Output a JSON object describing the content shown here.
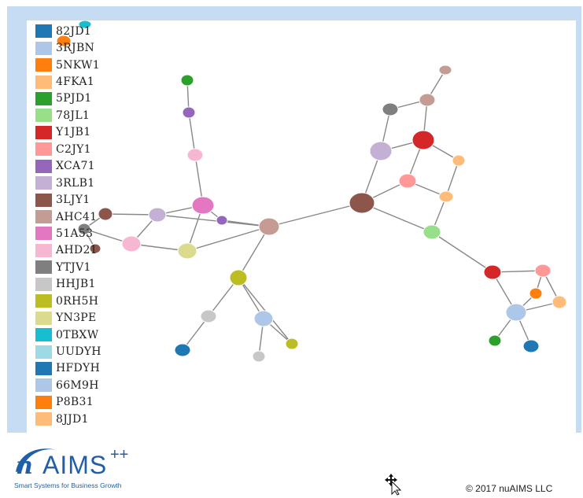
{
  "legend": [
    {
      "label": "82JD1",
      "color": "#1f77b4"
    },
    {
      "label": "3RJBN",
      "color": "#aec7e8"
    },
    {
      "label": "5NKW1",
      "color": "#ff7f0e"
    },
    {
      "label": "4FKA1",
      "color": "#ffbb78"
    },
    {
      "label": "5PJD1",
      "color": "#2ca02c"
    },
    {
      "label": "78JL1",
      "color": "#98df8a"
    },
    {
      "label": "Y1JB1",
      "color": "#d62728"
    },
    {
      "label": "C2JY1",
      "color": "#ff9896"
    },
    {
      "label": "XCA71",
      "color": "#9467bd"
    },
    {
      "label": "3RLB1",
      "color": "#c5b0d5"
    },
    {
      "label": "3LJY1",
      "color": "#8c564b"
    },
    {
      "label": "AHC41",
      "color": "#c49c94"
    },
    {
      "label": "51A53",
      "color": "#e377c2"
    },
    {
      "label": "AHD21",
      "color": "#f7b6d2"
    },
    {
      "label": "YTJV1",
      "color": "#7f7f7f"
    },
    {
      "label": "HHJB1",
      "color": "#c7c7c7"
    },
    {
      "label": "0RH5H",
      "color": "#bcbd22"
    },
    {
      "label": "YN3PE",
      "color": "#dbdb8d"
    },
    {
      "label": "0TBXW",
      "color": "#17becf"
    },
    {
      "label": "UUDYH",
      "color": "#9edae5"
    },
    {
      "label": "HFDYH",
      "color": "#1f77b4"
    },
    {
      "label": "66M9H",
      "color": "#aec7e8"
    },
    {
      "label": "P8B31",
      "color": "#ff7f0e"
    },
    {
      "label": "8JJD1",
      "color": "#ffbb78"
    }
  ],
  "network": {
    "nodes": [
      {
        "id": "n1",
        "color": "#2ca02c"
      },
      {
        "id": "n2",
        "color": "#9467bd"
      },
      {
        "id": "n3",
        "color": "#f7b6d2"
      },
      {
        "id": "n4",
        "color": "#e377c2"
      },
      {
        "id": "n5",
        "color": "#9467bd"
      },
      {
        "id": "n6",
        "color": "#c5b0d5"
      },
      {
        "id": "n7",
        "color": "#8c564b"
      },
      {
        "id": "n8",
        "color": "#7f7f7f"
      },
      {
        "id": "n9",
        "color": "#8c564b"
      },
      {
        "id": "n10",
        "color": "#f7b6d2"
      },
      {
        "id": "n11",
        "color": "#dbdb8d"
      },
      {
        "id": "n12",
        "color": "#c49c94"
      },
      {
        "id": "n13",
        "color": "#bcbd22"
      },
      {
        "id": "n14",
        "color": "#c7c7c7"
      },
      {
        "id": "n15",
        "color": "#1f77b4"
      },
      {
        "id": "n16",
        "color": "#aec7e8"
      },
      {
        "id": "n17",
        "color": "#c7c7c7"
      },
      {
        "id": "n18",
        "color": "#bcbd22"
      },
      {
        "id": "n19",
        "color": "#8c564b"
      },
      {
        "id": "n20",
        "color": "#c49c94"
      },
      {
        "id": "n21",
        "color": "#c49c94"
      },
      {
        "id": "n22",
        "color": "#7f7f7f"
      },
      {
        "id": "n23",
        "color": "#c5b0d5"
      },
      {
        "id": "n24",
        "color": "#d62728"
      },
      {
        "id": "n25",
        "color": "#ffbb78"
      },
      {
        "id": "n26",
        "color": "#ff9896"
      },
      {
        "id": "n27",
        "color": "#ffbb78"
      },
      {
        "id": "n28",
        "color": "#98df8a"
      },
      {
        "id": "n29",
        "color": "#d62728"
      },
      {
        "id": "n30",
        "color": "#ff9896"
      },
      {
        "id": "n31",
        "color": "#ff7f0e"
      },
      {
        "id": "n32",
        "color": "#ffbb78"
      },
      {
        "id": "n33",
        "color": "#aec7e8"
      },
      {
        "id": "n34",
        "color": "#2ca02c"
      },
      {
        "id": "n35",
        "color": "#1f77b4"
      },
      {
        "id": "n36",
        "color": "#17becf"
      },
      {
        "id": "n37",
        "color": "#ff7f0e"
      }
    ],
    "edges": [
      [
        "n1",
        "n2"
      ],
      [
        "n2",
        "n3"
      ],
      [
        "n3",
        "n4"
      ],
      [
        "n4",
        "n6"
      ],
      [
        "n4",
        "n11"
      ],
      [
        "n4",
        "n5"
      ],
      [
        "n5",
        "n12"
      ],
      [
        "n6",
        "n12"
      ],
      [
        "n6",
        "n7"
      ],
      [
        "n6",
        "n10"
      ],
      [
        "n7",
        "n8"
      ],
      [
        "n8",
        "n10"
      ],
      [
        "n8",
        "n9"
      ],
      [
        "n10",
        "n11"
      ],
      [
        "n11",
        "n12"
      ],
      [
        "n12",
        "n13"
      ],
      [
        "n13",
        "n14"
      ],
      [
        "n13",
        "n16"
      ],
      [
        "n13",
        "n18"
      ],
      [
        "n14",
        "n15"
      ],
      [
        "n16",
        "n17"
      ],
      [
        "n16",
        "n18"
      ],
      [
        "n12",
        "n19"
      ],
      [
        "n19",
        "n23"
      ],
      [
        "n19",
        "n26"
      ],
      [
        "n19",
        "n28"
      ],
      [
        "n23",
        "n22"
      ],
      [
        "n22",
        "n21"
      ],
      [
        "n21",
        "n20"
      ],
      [
        "n21",
        "n24"
      ],
      [
        "n23",
        "n24"
      ],
      [
        "n24",
        "n26"
      ],
      [
        "n24",
        "n25"
      ],
      [
        "n25",
        "n27"
      ],
      [
        "n26",
        "n27"
      ],
      [
        "n27",
        "n28"
      ],
      [
        "n28",
        "n29"
      ],
      [
        "n29",
        "n30"
      ],
      [
        "n29",
        "n33"
      ],
      [
        "n30",
        "n32"
      ],
      [
        "n30",
        "n31"
      ],
      [
        "n31",
        "n33"
      ],
      [
        "n32",
        "n33"
      ],
      [
        "n33",
        "n34"
      ],
      [
        "n33",
        "n35"
      ]
    ]
  },
  "logo": {
    "brand": "AIMS",
    "superscript": "++",
    "tagline": "Smart Systems for Business Growth"
  },
  "copyright": "© 2017 nuAIMS LLC",
  "colors": {
    "frame": "#c6dcf2",
    "edge": "#888888",
    "brand": "#1f5fa8"
  }
}
